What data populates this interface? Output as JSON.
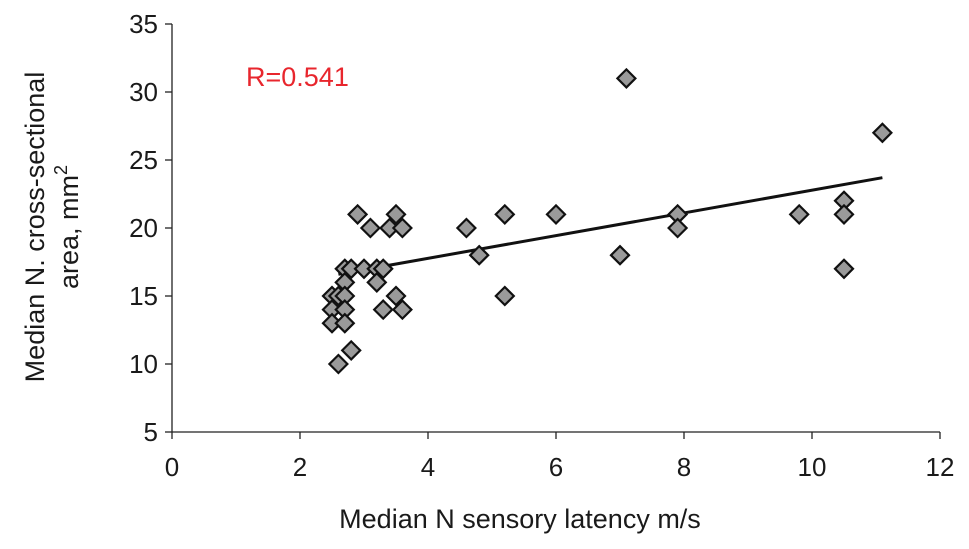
{
  "chart_data": {
    "type": "scatter",
    "xlabel": "Median N sensory latency m/s",
    "ylabel_line1": "Median N. cross-sectional",
    "ylabel_line2_base": "area, mm",
    "ylabel_line2_sup": "2",
    "annotation": {
      "text": "R=0.541",
      "color": "#e8262d"
    },
    "xlim": [
      0,
      12
    ],
    "ylim": [
      5,
      35
    ],
    "xticks": [
      "0",
      "2",
      "4",
      "6",
      "8",
      "10",
      "12"
    ],
    "yticks": [
      "5",
      "10",
      "15",
      "20",
      "25",
      "30",
      "35"
    ],
    "grid": false,
    "marker": {
      "shape": "diamond",
      "fill": "#9a9a9a",
      "stroke": "#111111"
    },
    "points": [
      {
        "x": 2.5,
        "y": 15
      },
      {
        "x": 2.5,
        "y": 14
      },
      {
        "x": 2.5,
        "y": 13
      },
      {
        "x": 2.6,
        "y": 10
      },
      {
        "x": 2.6,
        "y": 15
      },
      {
        "x": 2.7,
        "y": 17
      },
      {
        "x": 2.7,
        "y": 16
      },
      {
        "x": 2.7,
        "y": 15
      },
      {
        "x": 2.7,
        "y": 14
      },
      {
        "x": 2.7,
        "y": 13
      },
      {
        "x": 2.8,
        "y": 17
      },
      {
        "x": 2.8,
        "y": 11
      },
      {
        "x": 2.9,
        "y": 21
      },
      {
        "x": 3.0,
        "y": 17
      },
      {
        "x": 3.1,
        "y": 20
      },
      {
        "x": 3.2,
        "y": 17
      },
      {
        "x": 3.2,
        "y": 16
      },
      {
        "x": 3.3,
        "y": 14
      },
      {
        "x": 3.3,
        "y": 17
      },
      {
        "x": 3.4,
        "y": 20
      },
      {
        "x": 3.5,
        "y": 21
      },
      {
        "x": 3.5,
        "y": 15
      },
      {
        "x": 3.6,
        "y": 20
      },
      {
        "x": 3.6,
        "y": 14
      },
      {
        "x": 4.6,
        "y": 20
      },
      {
        "x": 4.8,
        "y": 18
      },
      {
        "x": 5.2,
        "y": 21
      },
      {
        "x": 5.2,
        "y": 15
      },
      {
        "x": 6.0,
        "y": 21
      },
      {
        "x": 7.0,
        "y": 18
      },
      {
        "x": 7.1,
        "y": 31
      },
      {
        "x": 7.9,
        "y": 21
      },
      {
        "x": 7.9,
        "y": 20
      },
      {
        "x": 9.8,
        "y": 21
      },
      {
        "x": 10.5,
        "y": 22
      },
      {
        "x": 10.5,
        "y": 21
      },
      {
        "x": 10.5,
        "y": 17
      },
      {
        "x": 11.1,
        "y": 27
      }
    ],
    "trendline": {
      "x": [
        2.6,
        11.1
      ],
      "y": [
        16.6,
        23.7
      ],
      "color": "#111111"
    }
  }
}
